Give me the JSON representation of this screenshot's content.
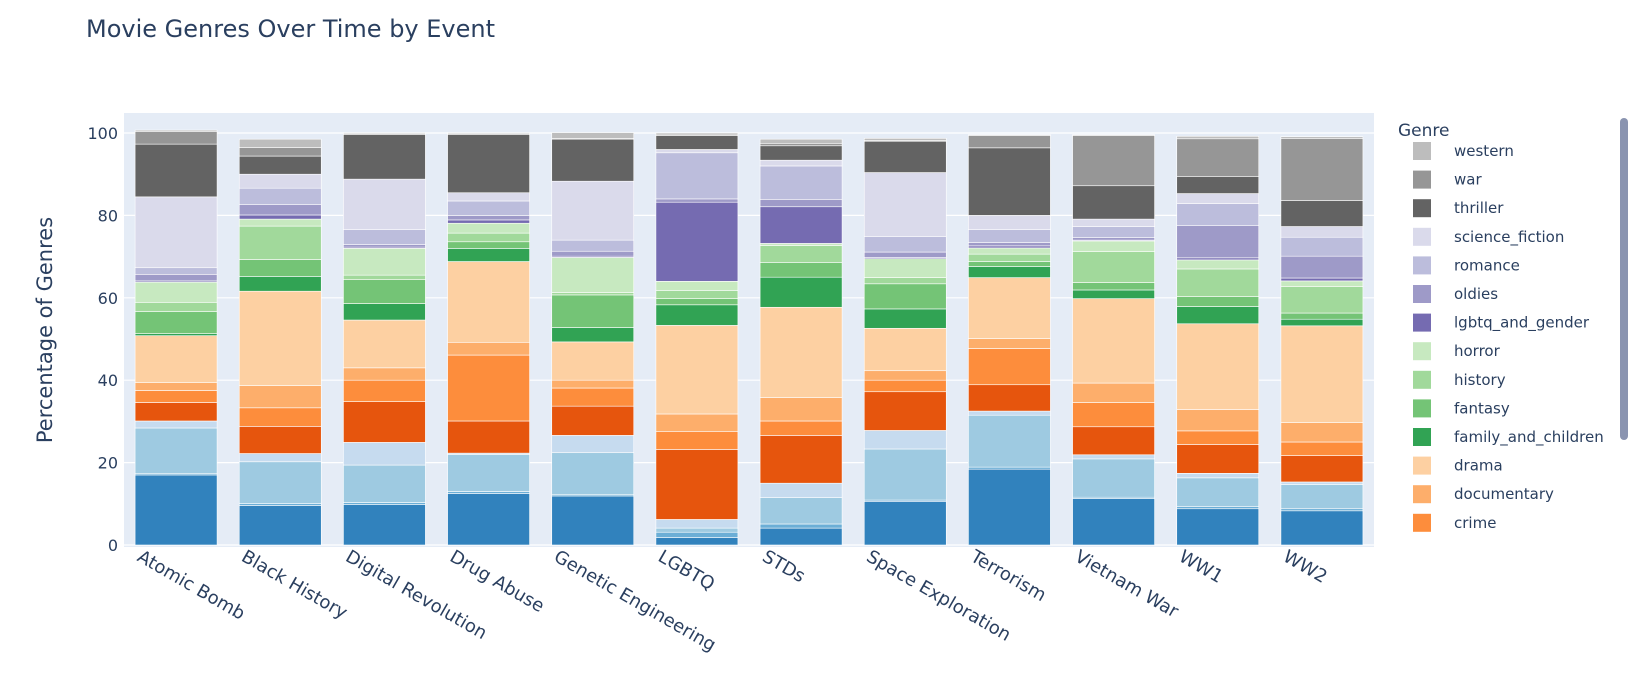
{
  "chart_data": {
    "type": "bar",
    "stacked": true,
    "title": "Movie Genres Over Time by Event",
    "ylabel": "Percentage of Genres",
    "xlabel": "",
    "ylim": [
      0,
      105
    ],
    "yticks": [
      0,
      20,
      40,
      60,
      80,
      100
    ],
    "grid": true,
    "legend": {
      "title": "Genre",
      "placement": "right"
    },
    "categories": [
      "Atomic Bomb",
      "Black History",
      "Digital Revolution",
      "Drug Abuse",
      "Genetic Engineering",
      "LGBTQ",
      "STDs",
      "Space Exploration",
      "Terrorism",
      "Vietnam War",
      "WW1",
      "WW2"
    ],
    "series": [
      {
        "key": "s01",
        "color": "#3182bd",
        "values": [
          17.0,
          9.6,
          9.8,
          12.5,
          11.9,
          1.8,
          4.1,
          10.6,
          18.4,
          11.3,
          8.8,
          8.3
        ]
      },
      {
        "key": "s02",
        "color": "#6baed6",
        "values": [
          0.3,
          0.5,
          0.5,
          0.5,
          0.3,
          1.3,
          1.0,
          0.3,
          0.5,
          0.3,
          0.5,
          0.5
        ]
      },
      {
        "key": "s03",
        "color": "#9ecae1",
        "values": [
          11.1,
          10.1,
          9.1,
          9.0,
          10.2,
          1.0,
          6.4,
          12.4,
          12.6,
          9.3,
          7.0,
          5.9
        ]
      },
      {
        "key": "s04",
        "color": "#c6dbef",
        "values": [
          1.7,
          2.0,
          5.5,
          0.3,
          4.2,
          2.1,
          3.5,
          4.5,
          1.0,
          1.0,
          1.1,
          0.6
        ]
      },
      {
        "key": "s05",
        "color": "#e6550d",
        "values": [
          4.5,
          6.6,
          9.9,
          7.8,
          7.1,
          17.0,
          11.6,
          9.4,
          6.4,
          6.8,
          7.0,
          6.4
        ]
      },
      {
        "key": "s06",
        "color": "#fd8d3c",
        "values": [
          2.9,
          4.5,
          5.2,
          16.0,
          4.4,
          4.3,
          3.5,
          2.8,
          8.8,
          5.9,
          3.3,
          3.3
        ]
      },
      {
        "key": "documentary",
        "name": "documentary",
        "color": "#fdae6b",
        "values": [
          1.9,
          5.4,
          3.0,
          3.1,
          1.9,
          4.3,
          5.7,
          2.3,
          2.4,
          4.7,
          5.2,
          4.7
        ]
      },
      {
        "key": "drama",
        "name": "drama",
        "color": "#fdd0a2",
        "values": [
          11.4,
          22.9,
          11.6,
          19.6,
          9.3,
          21.5,
          21.9,
          10.3,
          14.8,
          20.5,
          20.8,
          23.5
        ]
      },
      {
        "key": "family_and_children",
        "name": "family_and_children",
        "color": "#31a354",
        "values": [
          0.5,
          3.6,
          4.0,
          3.2,
          3.5,
          5.0,
          7.3,
          4.7,
          2.7,
          2.1,
          4.2,
          1.6
        ]
      },
      {
        "key": "fantasy",
        "name": "fantasy",
        "color": "#74c476",
        "values": [
          5.4,
          4.1,
          5.8,
          1.6,
          7.9,
          1.5,
          3.6,
          6.1,
          1.2,
          1.8,
          2.4,
          1.5
        ]
      },
      {
        "key": "history",
        "name": "history",
        "color": "#a1d99b",
        "values": [
          2.2,
          8.1,
          1.1,
          2.1,
          0.6,
          2.0,
          4.1,
          1.5,
          1.8,
          7.5,
          6.7,
          6.4
        ]
      },
      {
        "key": "horror",
        "name": "horror",
        "color": "#c7e9c0",
        "values": [
          4.9,
          1.7,
          6.5,
          2.4,
          8.5,
          2.2,
          0.5,
          4.6,
          1.5,
          2.6,
          2.2,
          1.4
        ]
      },
      {
        "key": "lgbtq_and_gender",
        "name": "lgbtq_and_gender",
        "color": "#756bb1",
        "values": [
          0.3,
          1.0,
          0.3,
          0.8,
          0.3,
          19.2,
          8.9,
          0.3,
          0.5,
          0.2,
          0.5,
          0.7
        ]
      },
      {
        "key": "oldies",
        "name": "oldies",
        "color": "#9e9ac8",
        "values": [
          1.6,
          2.5,
          0.6,
          1.1,
          1.2,
          0.8,
          1.8,
          1.3,
          0.8,
          0.6,
          7.8,
          5.3
        ]
      },
      {
        "key": "romance",
        "name": "romance",
        "color": "#bcbddc",
        "values": [
          1.6,
          4.0,
          3.7,
          3.5,
          2.7,
          11.2,
          8.1,
          3.8,
          3.2,
          2.7,
          5.4,
          4.6
        ]
      },
      {
        "key": "science_fiction",
        "name": "science_fiction",
        "color": "#dadaeb",
        "values": [
          17.2,
          3.4,
          12.2,
          2.0,
          14.3,
          0.8,
          1.4,
          15.5,
          3.4,
          1.8,
          2.4,
          2.6
        ]
      },
      {
        "key": "thriller",
        "name": "thriller",
        "color": "#636363",
        "values": [
          12.8,
          4.4,
          10.8,
          14.1,
          10.2,
          3.4,
          3.5,
          7.6,
          16.4,
          8.1,
          4.1,
          6.3
        ]
      },
      {
        "key": "war",
        "name": "war",
        "color": "#969696",
        "values": [
          3.1,
          2.1,
          0.3,
          0.3,
          0.2,
          0.3,
          0.6,
          0.2,
          3.0,
          12.2,
          9.2,
          15.1
        ]
      },
      {
        "key": "western",
        "name": "western",
        "color": "#bdbdbd",
        "values": [
          0.3,
          2.0,
          0.2,
          0.2,
          1.4,
          0.3,
          1.0,
          0.5,
          0.2,
          0.2,
          0.6,
          0.4
        ]
      }
    ],
    "legend_entries": [
      "western",
      "war",
      "thriller",
      "science_fiction",
      "romance",
      "oldies",
      "lgbtq_and_gender",
      "horror",
      "history",
      "fantasy",
      "family_and_children",
      "drama",
      "documentary",
      "crime"
    ],
    "legend_colors": [
      "#bdbdbd",
      "#969696",
      "#636363",
      "#dadaeb",
      "#bcbddc",
      "#9e9ac8",
      "#756bb1",
      "#c7e9c0",
      "#a1d99b",
      "#74c476",
      "#31a354",
      "#fdd0a2",
      "#fdae6b",
      "#fd8d3c"
    ]
  }
}
